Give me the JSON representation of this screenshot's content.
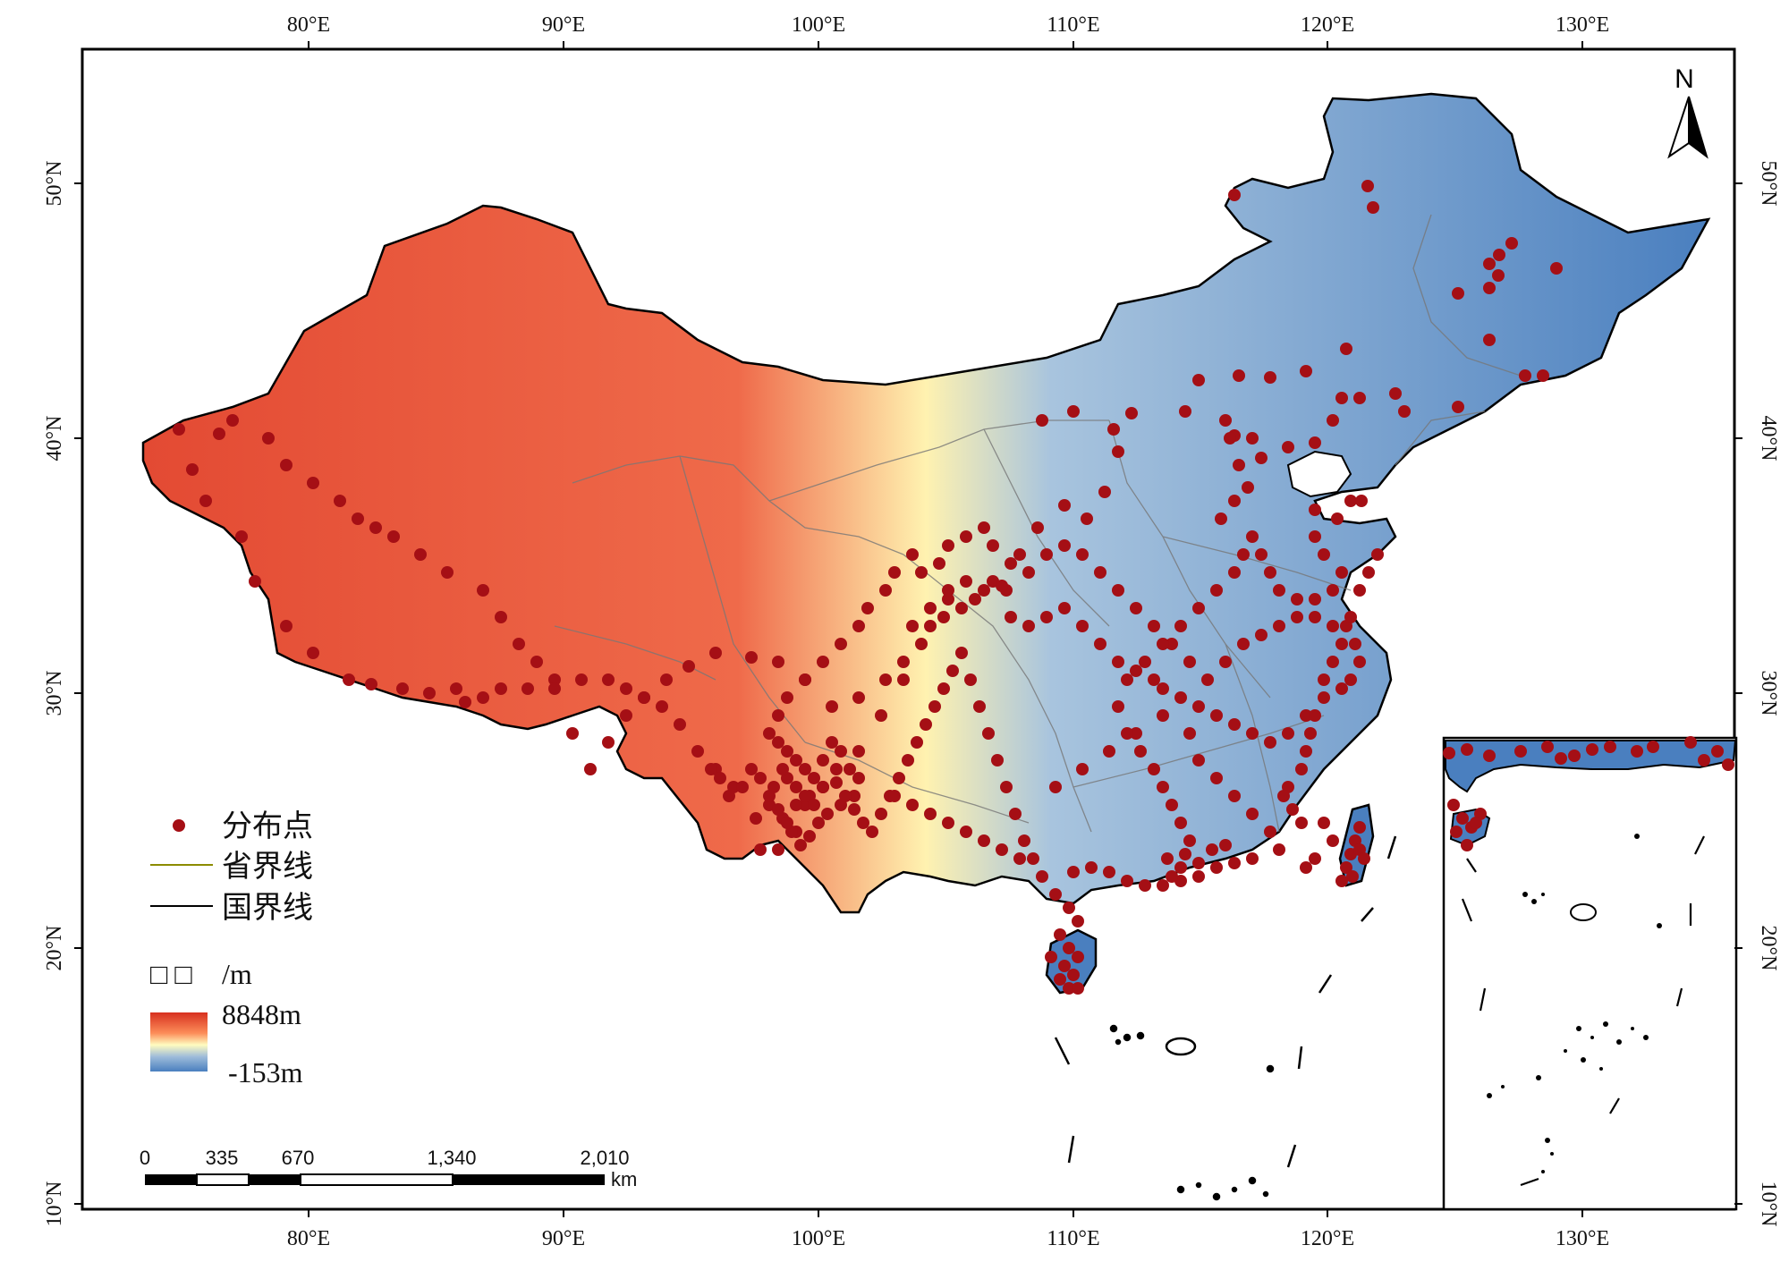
{
  "axes": {
    "lon_ticks": [
      "80°E",
      "90°E",
      "100°E",
      "110°E",
      "120°E",
      "130°E"
    ],
    "lat_ticks": [
      "50°N",
      "40°N",
      "30°N",
      "20°N",
      "10°N"
    ]
  },
  "north_arrow": {
    "label": "N",
    "icon": "north-arrow-icon"
  },
  "legend": {
    "points_label": "分布点",
    "province_label": "省界线",
    "border_label": "国界线",
    "elevation_title_glyphs": "□ □",
    "elevation_unit": "/m",
    "elevation_max": "8848m",
    "elevation_min": "-153m",
    "colors": {
      "point": "#a50f15",
      "province_line": "#8c8c00",
      "border_line": "#000000",
      "high": "#e34a33",
      "mid": "#fffcc0",
      "low": "#4a7fbf"
    }
  },
  "scale_bar": {
    "ticks": [
      "0",
      "335",
      "670",
      "1,340",
      "2,010"
    ],
    "unit": "km"
  }
}
